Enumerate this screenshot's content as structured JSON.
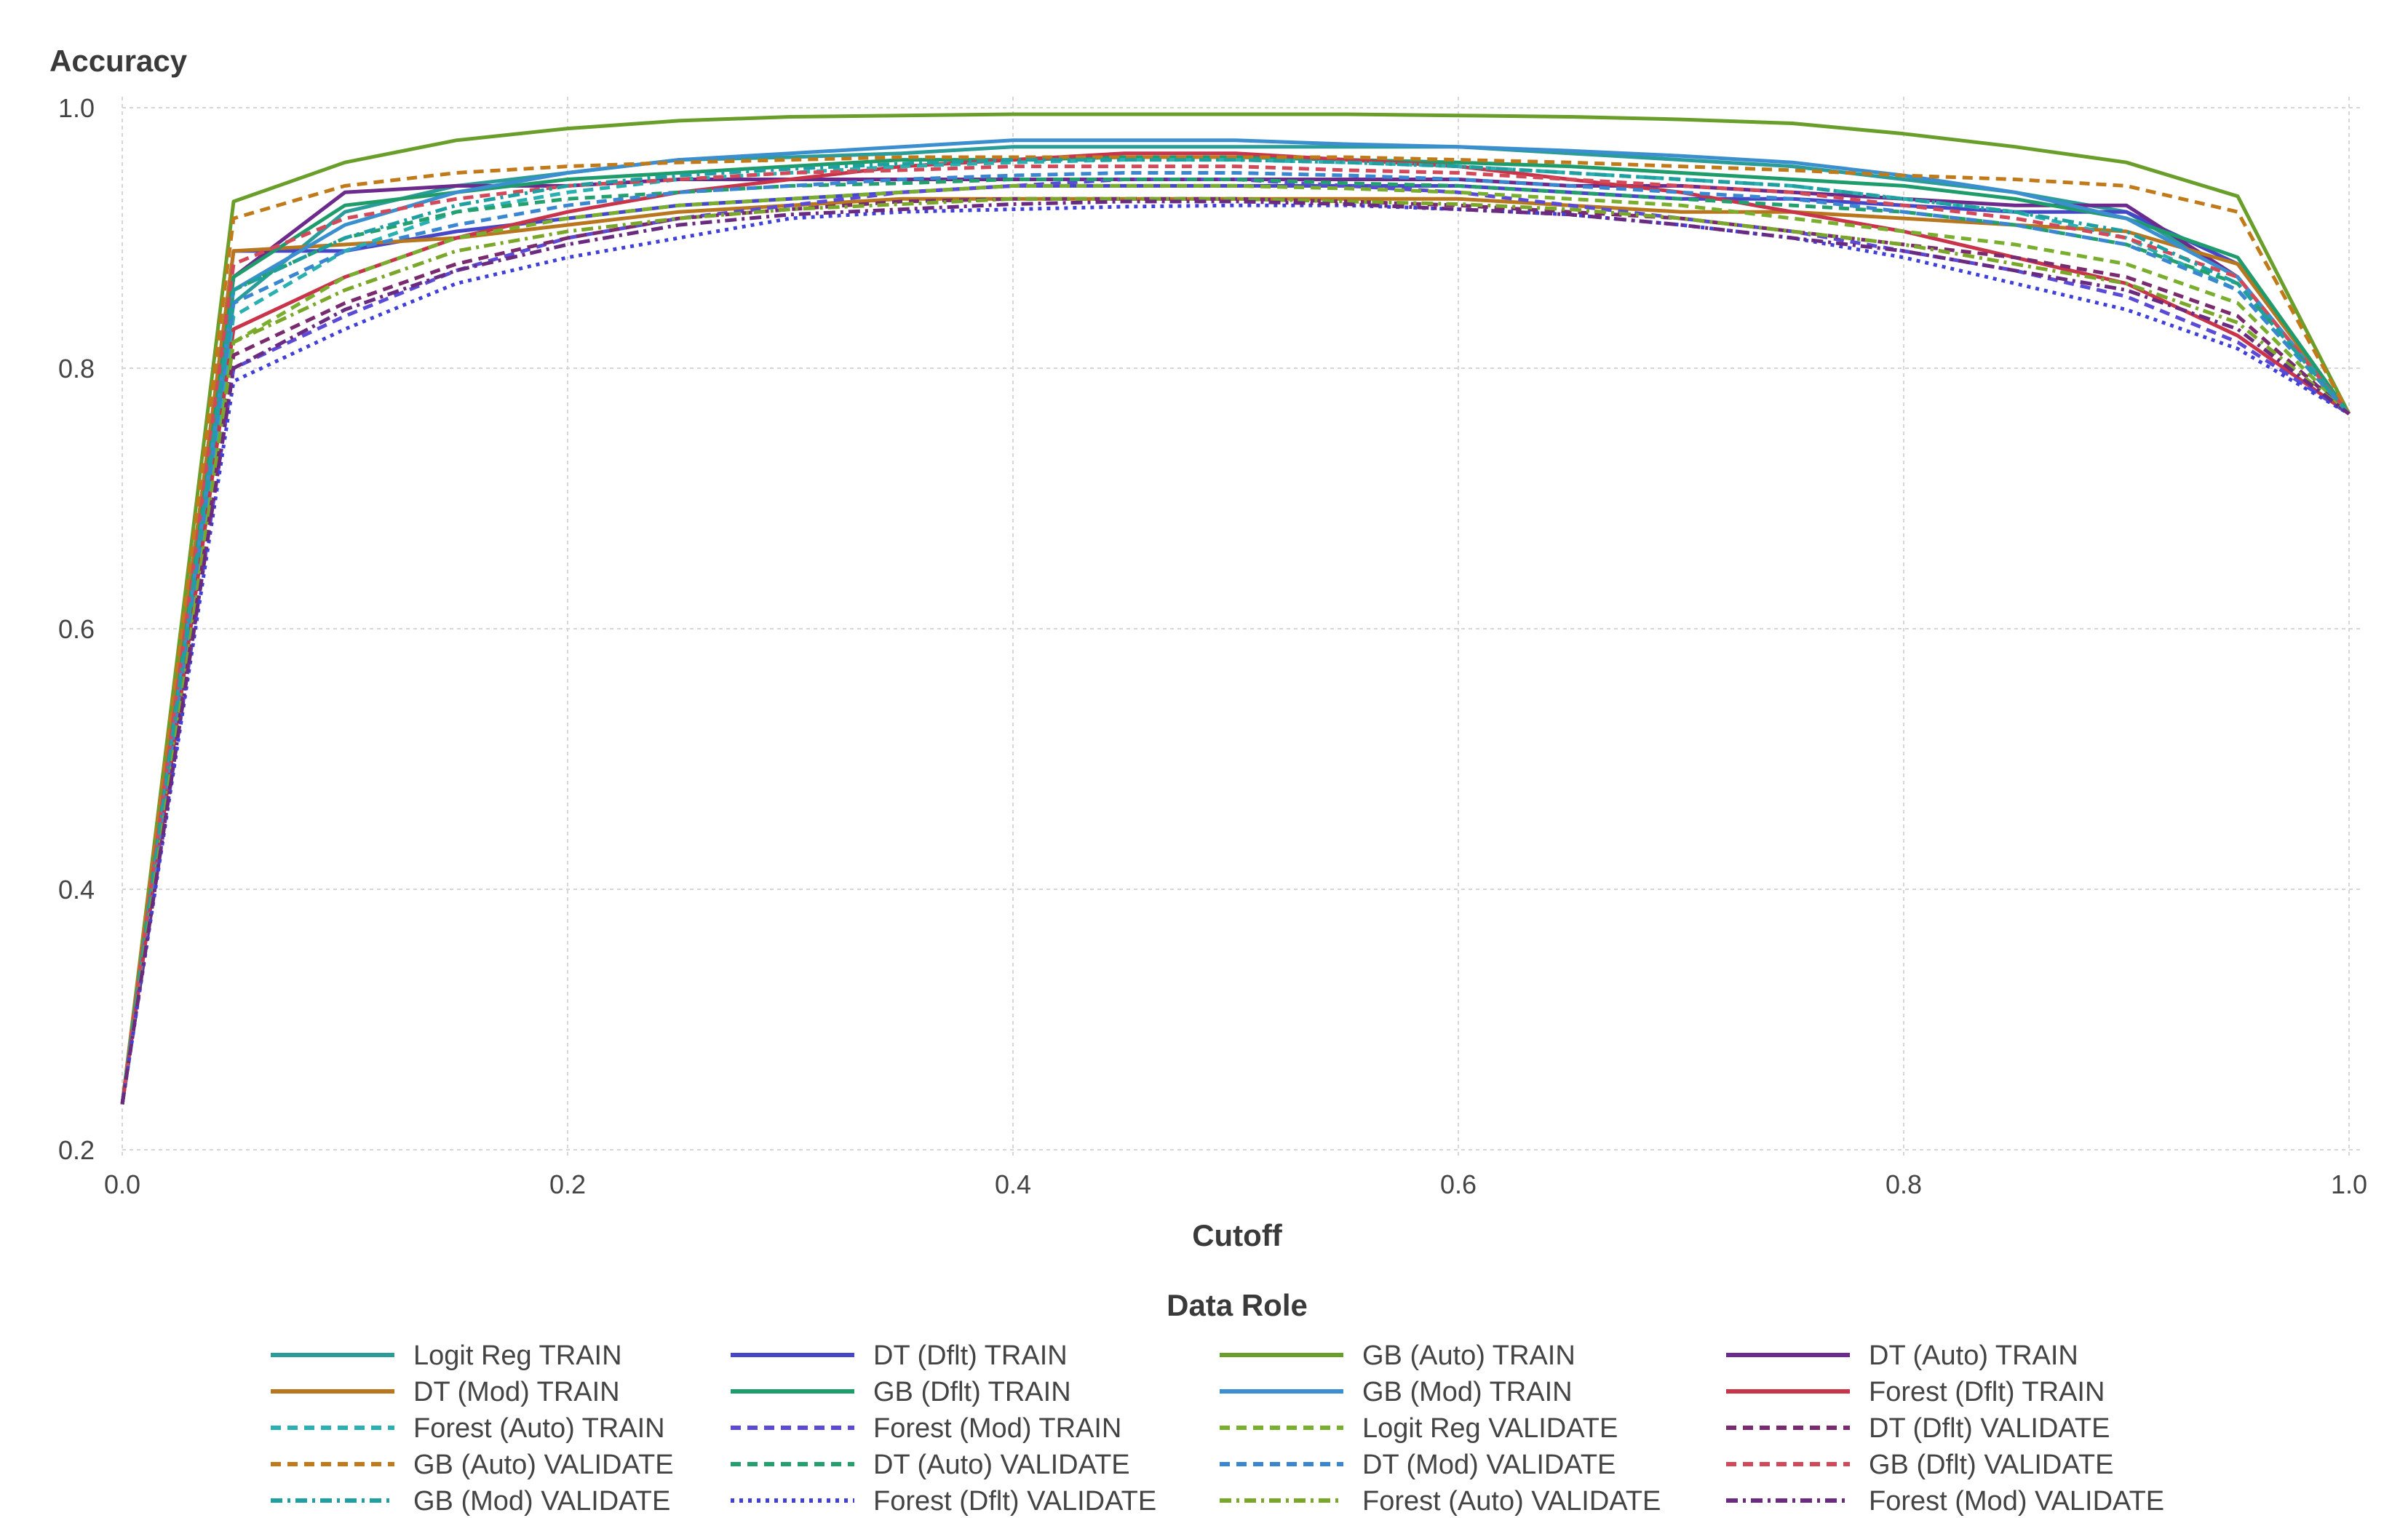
{
  "chart_data": {
    "type": "line",
    "title": "",
    "ylabel": "Accuracy",
    "xlabel": "Cutoff",
    "xlim": [
      0,
      1
    ],
    "ylim": [
      0.2,
      1.0
    ],
    "xticks": [
      "0.0",
      "0.2",
      "0.4",
      "0.6",
      "0.8",
      "1.0"
    ],
    "yticks": [
      "0.2",
      "0.4",
      "0.6",
      "0.8",
      "1.0"
    ],
    "grid": true,
    "legend_title": "Data Role",
    "legend_position": "bottom",
    "x": [
      0,
      0.05,
      0.1,
      0.15,
      0.2,
      0.25,
      0.3,
      0.35,
      0.4,
      0.45,
      0.5,
      0.55,
      0.6,
      0.65,
      0.7,
      0.75,
      0.8,
      0.85,
      0.9,
      0.95,
      1.0
    ],
    "series": [
      {
        "name": "Logit Reg TRAIN",
        "color": "#2a9d9a",
        "dash": "solid",
        "values": [
          0.235,
          0.85,
          0.92,
          0.94,
          0.95,
          0.96,
          0.962,
          0.965,
          0.97,
          0.97,
          0.97,
          0.97,
          0.97,
          0.965,
          0.96,
          0.955,
          0.945,
          0.935,
          0.92,
          0.87,
          0.765
        ]
      },
      {
        "name": "DT (Dflt) TRAIN",
        "color": "#4646c8",
        "dash": "solid",
        "values": [
          0.235,
          0.89,
          0.89,
          0.905,
          0.915,
          0.925,
          0.93,
          0.935,
          0.94,
          0.94,
          0.94,
          0.94,
          0.94,
          0.935,
          0.93,
          0.93,
          0.925,
          0.92,
          0.92,
          0.88,
          0.765
        ]
      },
      {
        "name": "GB (Auto) TRAIN",
        "color": "#6a9e2a",
        "dash": "solid",
        "values": [
          0.235,
          0.928,
          0.958,
          0.975,
          0.984,
          0.99,
          0.993,
          0.994,
          0.995,
          0.995,
          0.995,
          0.995,
          0.994,
          0.993,
          0.991,
          0.988,
          0.98,
          0.97,
          0.958,
          0.932,
          0.765
        ]
      },
      {
        "name": "DT (Auto) TRAIN",
        "color": "#6b2a8c",
        "dash": "solid",
        "values": [
          0.235,
          0.87,
          0.935,
          0.94,
          0.94,
          0.945,
          0.945,
          0.945,
          0.945,
          0.945,
          0.945,
          0.945,
          0.945,
          0.94,
          0.94,
          0.935,
          0.93,
          0.925,
          0.925,
          0.87,
          0.765
        ]
      },
      {
        "name": "DT (Mod) TRAIN",
        "color": "#b8761e",
        "dash": "solid",
        "values": [
          0.235,
          0.89,
          0.895,
          0.9,
          0.91,
          0.92,
          0.925,
          0.93,
          0.93,
          0.93,
          0.93,
          0.93,
          0.93,
          0.925,
          0.92,
          0.92,
          0.915,
          0.91,
          0.905,
          0.88,
          0.765
        ]
      },
      {
        "name": "GB (Dflt) TRAIN",
        "color": "#1f9c6b",
        "dash": "solid",
        "values": [
          0.235,
          0.87,
          0.925,
          0.935,
          0.945,
          0.95,
          0.955,
          0.96,
          0.96,
          0.962,
          0.962,
          0.96,
          0.958,
          0.955,
          0.95,
          0.945,
          0.94,
          0.93,
          0.915,
          0.885,
          0.765
        ]
      },
      {
        "name": "GB (Mod) TRAIN",
        "color": "#3b8fcf",
        "dash": "solid",
        "values": [
          0.235,
          0.86,
          0.91,
          0.935,
          0.95,
          0.96,
          0.965,
          0.97,
          0.975,
          0.975,
          0.975,
          0.972,
          0.97,
          0.967,
          0.963,
          0.958,
          0.948,
          0.935,
          0.915,
          0.87,
          0.765
        ]
      },
      {
        "name": "Forest (Dflt) TRAIN",
        "color": "#c8344a",
        "dash": "solid",
        "values": [
          0.235,
          0.83,
          0.87,
          0.9,
          0.92,
          0.935,
          0.945,
          0.955,
          0.96,
          0.965,
          0.965,
          0.96,
          0.955,
          0.945,
          0.935,
          0.92,
          0.905,
          0.885,
          0.865,
          0.825,
          0.765
        ]
      },
      {
        "name": "Forest (Auto) TRAIN",
        "color": "#2ab0b0",
        "dash": "dash",
        "values": [
          0.235,
          0.84,
          0.89,
          0.92,
          0.935,
          0.945,
          0.95,
          0.955,
          0.958,
          0.96,
          0.96,
          0.958,
          0.955,
          0.95,
          0.945,
          0.94,
          0.93,
          0.92,
          0.9,
          0.86,
          0.765
        ]
      },
      {
        "name": "Forest (Mod) TRAIN",
        "color": "#5a4ad6",
        "dash": "dash",
        "values": [
          0.235,
          0.8,
          0.84,
          0.875,
          0.9,
          0.915,
          0.925,
          0.935,
          0.94,
          0.945,
          0.945,
          0.94,
          0.935,
          0.925,
          0.915,
          0.905,
          0.89,
          0.875,
          0.855,
          0.82,
          0.765
        ]
      },
      {
        "name": "Logit Reg VALIDATE",
        "color": "#7aae2e",
        "dash": "dash",
        "values": [
          0.235,
          0.82,
          0.87,
          0.9,
          0.915,
          0.925,
          0.93,
          0.935,
          0.94,
          0.94,
          0.94,
          0.938,
          0.935,
          0.93,
          0.925,
          0.915,
          0.905,
          0.895,
          0.88,
          0.85,
          0.765
        ]
      },
      {
        "name": "DT (Dflt) VALIDATE",
        "color": "#7a2a6e",
        "dash": "dash",
        "values": [
          0.235,
          0.81,
          0.85,
          0.88,
          0.9,
          0.915,
          0.922,
          0.928,
          0.93,
          0.93,
          0.93,
          0.928,
          0.925,
          0.92,
          0.915,
          0.905,
          0.895,
          0.885,
          0.87,
          0.84,
          0.765
        ]
      },
      {
        "name": "GB (Auto) VALIDATE",
        "color": "#c07a1a",
        "dash": "dash",
        "values": [
          0.235,
          0.915,
          0.94,
          0.95,
          0.955,
          0.958,
          0.96,
          0.962,
          0.962,
          0.962,
          0.962,
          0.962,
          0.96,
          0.958,
          0.955,
          0.952,
          0.948,
          0.945,
          0.94,
          0.92,
          0.765
        ]
      },
      {
        "name": "DT (Auto) VALIDATE",
        "color": "#24a06e",
        "dash": "dash",
        "values": [
          0.235,
          0.86,
          0.9,
          0.92,
          0.93,
          0.935,
          0.94,
          0.942,
          0.945,
          0.945,
          0.945,
          0.942,
          0.94,
          0.935,
          0.93,
          0.925,
          0.92,
          0.91,
          0.895,
          0.865,
          0.765
        ]
      },
      {
        "name": "DT (Mod) VALIDATE",
        "color": "#3a86d0",
        "dash": "dash",
        "values": [
          0.235,
          0.85,
          0.89,
          0.91,
          0.925,
          0.935,
          0.94,
          0.945,
          0.948,
          0.95,
          0.95,
          0.948,
          0.945,
          0.94,
          0.935,
          0.93,
          0.92,
          0.91,
          0.895,
          0.86,
          0.765
        ]
      },
      {
        "name": "GB (Dflt) VALIDATE",
        "color": "#d24a5a",
        "dash": "dash",
        "values": [
          0.235,
          0.88,
          0.915,
          0.93,
          0.94,
          0.945,
          0.95,
          0.952,
          0.955,
          0.955,
          0.955,
          0.952,
          0.95,
          0.945,
          0.94,
          0.935,
          0.925,
          0.915,
          0.9,
          0.87,
          0.765
        ]
      },
      {
        "name": "GB (Mod) VALIDATE",
        "color": "#1f9fa0",
        "dash": "dashdot",
        "values": [
          0.235,
          0.86,
          0.9,
          0.925,
          0.94,
          0.948,
          0.953,
          0.957,
          0.96,
          0.96,
          0.96,
          0.958,
          0.955,
          0.95,
          0.945,
          0.94,
          0.93,
          0.92,
          0.905,
          0.865,
          0.765
        ]
      },
      {
        "name": "Forest (Dflt) VALIDATE",
        "color": "#4040d8",
        "dash": "dot",
        "values": [
          0.235,
          0.79,
          0.83,
          0.865,
          0.885,
          0.9,
          0.915,
          0.92,
          0.922,
          0.924,
          0.925,
          0.925,
          0.922,
          0.918,
          0.91,
          0.9,
          0.885,
          0.865,
          0.845,
          0.815,
          0.765
        ]
      },
      {
        "name": "Forest (Auto) VALIDATE",
        "color": "#7aa62a",
        "dash": "dashdot",
        "values": [
          0.235,
          0.82,
          0.86,
          0.89,
          0.905,
          0.915,
          0.922,
          0.926,
          0.93,
          0.93,
          0.93,
          0.928,
          0.926,
          0.922,
          0.915,
          0.905,
          0.895,
          0.88,
          0.865,
          0.835,
          0.765
        ]
      },
      {
        "name": "Forest (Mod) VALIDATE",
        "color": "#6a2a80",
        "dash": "dashdot",
        "values": [
          0.235,
          0.8,
          0.845,
          0.875,
          0.895,
          0.91,
          0.918,
          0.922,
          0.926,
          0.928,
          0.928,
          0.926,
          0.922,
          0.918,
          0.91,
          0.9,
          0.89,
          0.875,
          0.86,
          0.83,
          0.765
        ]
      }
    ]
  }
}
